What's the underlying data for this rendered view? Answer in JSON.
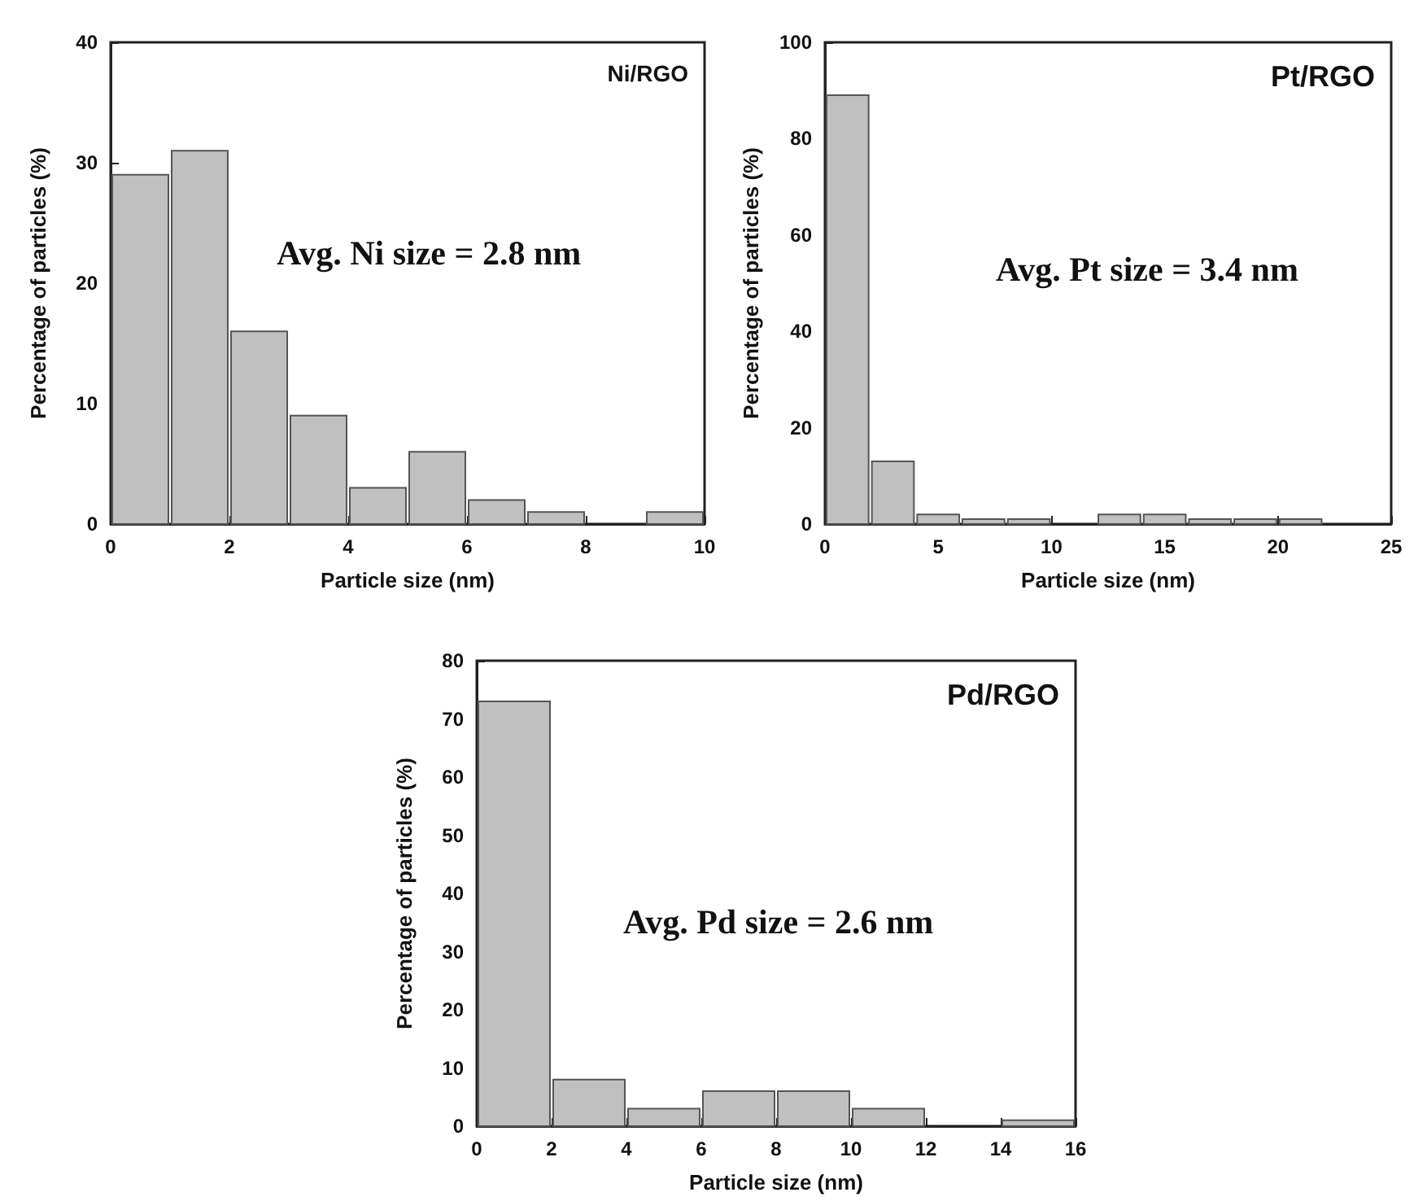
{
  "chart_data": [
    {
      "type": "histogram",
      "title": "Ni/RGO",
      "xlabel": "Particle size (nm)",
      "ylabel": "Percentage of particles (%)",
      "annotations": [
        "Avg. Ni size = 2.8 nm"
      ],
      "bins": [
        0,
        1,
        2,
        3,
        4,
        5,
        6,
        7,
        8,
        9,
        10
      ],
      "values": [
        29,
        31,
        16,
        9,
        3,
        6,
        2,
        1,
        0,
        1
      ],
      "color": "#c0c0c0",
      "xlim": [
        0,
        10
      ],
      "xticks": [
        0,
        2,
        4,
        6,
        8,
        10
      ],
      "ylim": [
        0,
        40
      ],
      "yticks": [
        0,
        10,
        20,
        30,
        40
      ],
      "grid": false
    },
    {
      "type": "histogram",
      "title": "Pt/RGO",
      "xlabel": "Particle size (nm)",
      "ylabel": "Percentage of particles (%)",
      "annotations": [
        "Avg. Pt size = 3.4 nm"
      ],
      "bins": [
        0,
        2,
        4,
        6,
        8,
        10,
        12,
        14,
        16,
        18,
        20,
        22
      ],
      "values": [
        89,
        13,
        2,
        1,
        1,
        0,
        2,
        2,
        1,
        1,
        1
      ],
      "color": "#c0c0c0",
      "xlim": [
        0,
        25
      ],
      "xticks": [
        0,
        5,
        10,
        15,
        20,
        25
      ],
      "ylim": [
        0,
        100
      ],
      "yticks": [
        0,
        20,
        40,
        60,
        80,
        100
      ],
      "grid": false
    },
    {
      "type": "histogram",
      "title": "Pd/RGO",
      "xlabel": "Particle size (nm)",
      "ylabel": "Percentage of particles (%)",
      "annotations": [
        "Avg. Pd size = 2.6 nm"
      ],
      "bins": [
        0,
        2,
        4,
        6,
        8,
        10,
        12,
        14,
        16
      ],
      "values": [
        73,
        8,
        3,
        6,
        6,
        3,
        0,
        1
      ],
      "color": "#c0c0c0",
      "xlim": [
        0,
        16
      ],
      "xticks": [
        0,
        2,
        4,
        6,
        8,
        10,
        12,
        14,
        16
      ],
      "ylim": [
        0,
        80
      ],
      "yticks": [
        0,
        10,
        20,
        30,
        40,
        50,
        60,
        70,
        80
      ],
      "grid": false
    }
  ]
}
